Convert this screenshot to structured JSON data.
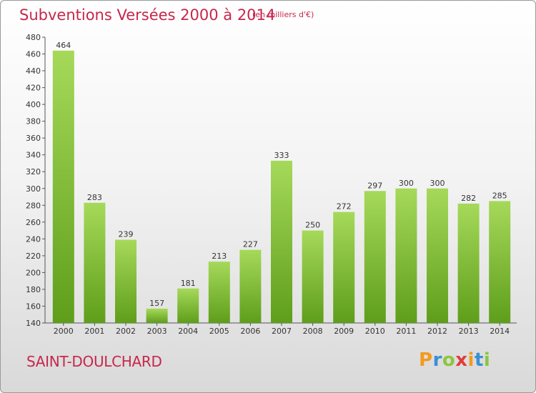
{
  "header": {
    "title": "Subventions Versées 2000 à 2014",
    "subtitle": "(en milliers d'€)"
  },
  "footer": {
    "commune": "SAINT-DOULCHARD",
    "logo_text": "Proxiti"
  },
  "colors": {
    "title": "#c8264b",
    "bar_light": "#a6d95a",
    "bar_dark": "#5e9e1a",
    "logo_letters": [
      "#f39a1e",
      "#3a8fd6",
      "#8cc63f",
      "#e23b3b",
      "#f39a1e",
      "#3a8fd6",
      "#8cc63f"
    ]
  },
  "chart_data": {
    "type": "bar",
    "categories": [
      "2000",
      "2001",
      "2002",
      "2003",
      "2004",
      "2005",
      "2006",
      "2007",
      "2008",
      "2009",
      "2010",
      "2011",
      "2012",
      "2013",
      "2014"
    ],
    "values": [
      464,
      283,
      239,
      157,
      181,
      213,
      227,
      333,
      250,
      272,
      297,
      300,
      300,
      282,
      285
    ],
    "ylim": [
      140,
      480
    ],
    "yticks": [
      140,
      160,
      180,
      200,
      220,
      240,
      260,
      280,
      300,
      320,
      340,
      360,
      380,
      400,
      420,
      440,
      460,
      480
    ],
    "grid": false,
    "data_labels": true
  }
}
